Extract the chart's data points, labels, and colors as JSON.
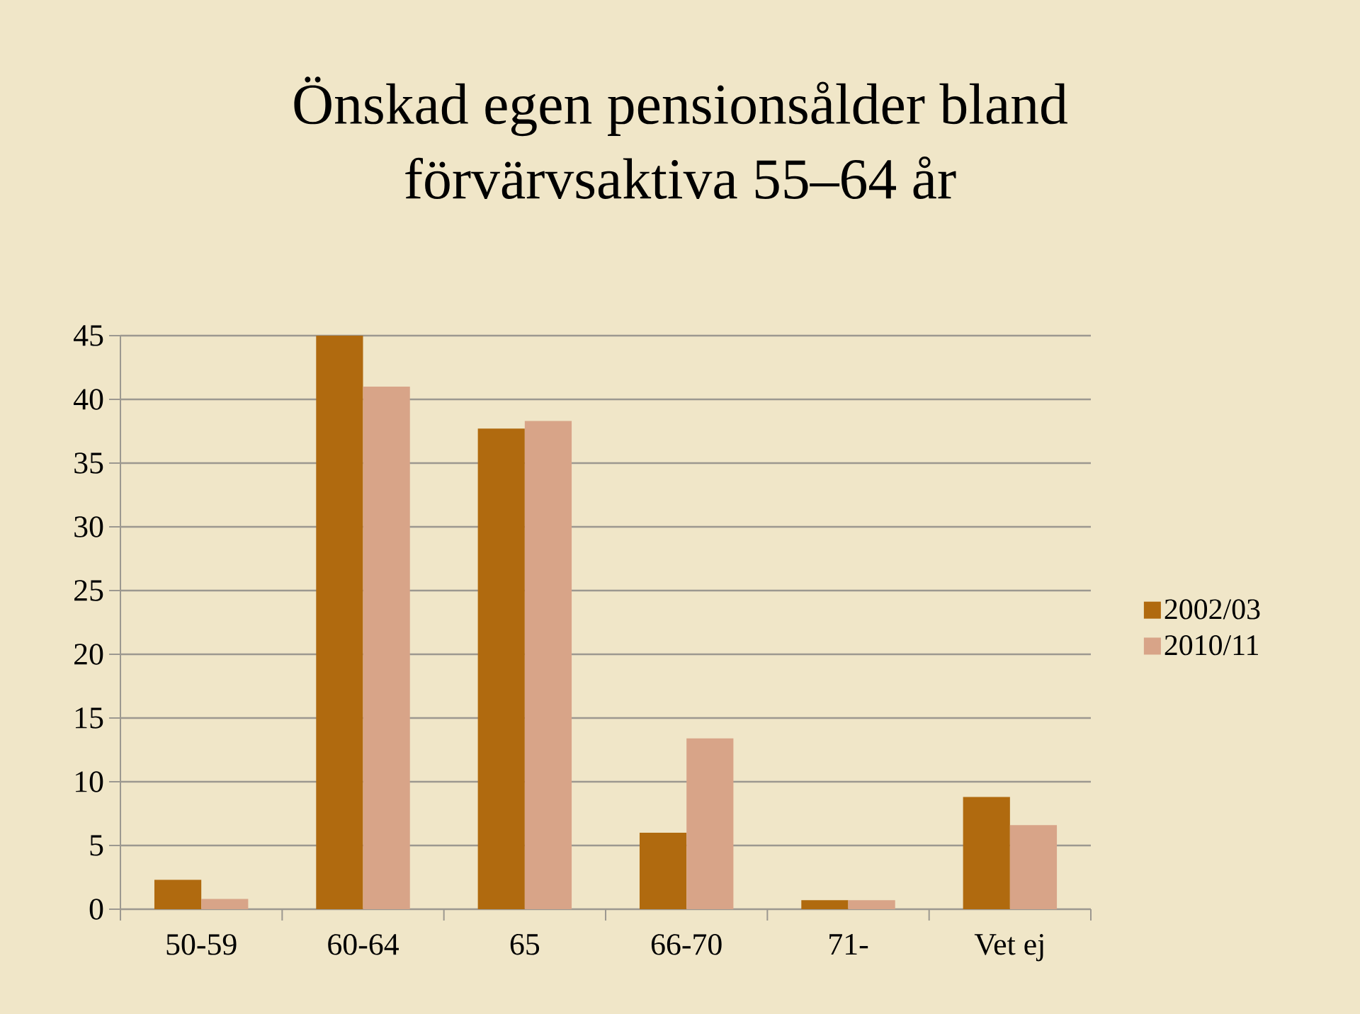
{
  "chart_data": {
    "type": "bar",
    "title": "Önskad egen pensionsålder bland förvärvsaktiva 55–64 år",
    "categories": [
      "50-59",
      "60-64",
      "65",
      "66-70",
      "71-",
      "Vet ej"
    ],
    "series": [
      {
        "name": "2002/03",
        "color": "#b06a0f",
        "values": [
          2.3,
          45,
          37.7,
          6,
          0.7,
          8.8
        ]
      },
      {
        "name": "2010/11",
        "color": "#d8a488",
        "values": [
          0.8,
          41,
          38.3,
          13.4,
          0.7,
          6.6
        ]
      }
    ],
    "ylim": [
      0,
      45
    ],
    "yticks": [
      0,
      5,
      10,
      15,
      20,
      25,
      30,
      35,
      40,
      45
    ],
    "grid": "y",
    "legend": "right"
  }
}
